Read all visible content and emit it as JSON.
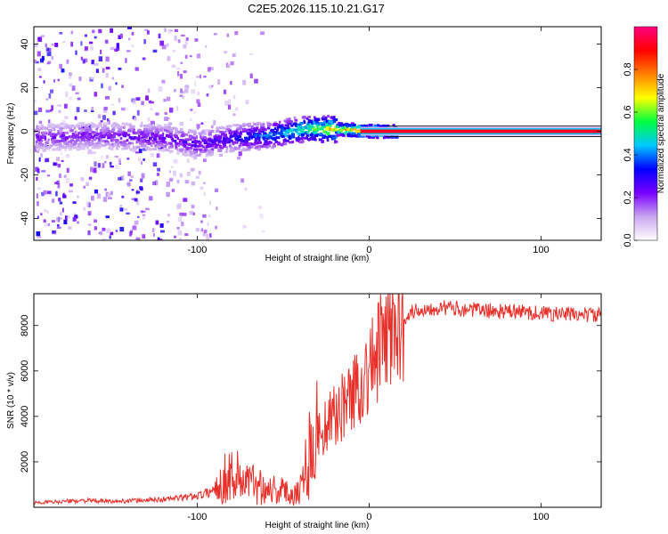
{
  "title": "C2E5.2026.115.10.21.G17",
  "chart_data": [
    {
      "type": "heatmap",
      "panel": "spectrogram",
      "xlabel": "Height of straight line (km)",
      "ylabel": "Frequency (Hz)",
      "xlim": [
        -195,
        135
      ],
      "ylim": [
        -50,
        48
      ],
      "x_ticks": [
        "-100",
        "0",
        "100"
      ],
      "x_tick_values": [
        -100,
        0,
        100
      ],
      "y_ticks": [
        "-40",
        "-20",
        "0",
        "20",
        "40"
      ],
      "y_tick_values": [
        -40,
        -20,
        0,
        20,
        40
      ],
      "colorbar": {
        "label": "Normalized spectral amplitude",
        "range": [
          0.0,
          1.0
        ],
        "ticks": [
          "0.0",
          "0.2",
          "0.4",
          "0.6",
          "0.8"
        ],
        "tick_values": [
          0.0,
          0.2,
          0.4,
          0.6,
          0.8
        ],
        "colors": [
          "#ffffff",
          "#c9a6f0",
          "#7a00ff",
          "#0000ff",
          "#00c8ff",
          "#00ff40",
          "#ffff00",
          "#ff8000",
          "#ff0000",
          "#ff0080"
        ]
      },
      "signal_track": {
        "x": [
          -195,
          -160,
          -120,
          -100,
          -80,
          -60,
          -40,
          -20,
          0,
          20,
          135
        ],
        "freq_hz": [
          -3,
          -2,
          -3,
          -6,
          -3,
          -2,
          1,
          1,
          0,
          0,
          0
        ],
        "amplitude": [
          0.25,
          0.25,
          0.3,
          0.3,
          0.35,
          0.45,
          0.6,
          0.8,
          0.9,
          0.9,
          0.9
        ]
      },
      "noise_region_x": [
        -195,
        -120
      ]
    },
    {
      "type": "line",
      "panel": "snr",
      "xlabel": "Height of straight line (km)",
      "ylabel": "SNR (10 * v/v)",
      "xlim": [
        -195,
        135
      ],
      "ylim": [
        0,
        9400
      ],
      "x_ticks": [
        "-100",
        "0",
        "100"
      ],
      "x_tick_values": [
        -100,
        0,
        100
      ],
      "y_ticks": [
        "2000",
        "4000",
        "6000",
        "8000"
      ],
      "y_tick_values": [
        2000,
        4000,
        6000,
        8000
      ],
      "color": "#e8302a",
      "series": [
        {
          "name": "SNR",
          "x": [
            -195,
            -180,
            -165,
            -150,
            -135,
            -120,
            -105,
            -95,
            -90,
            -85,
            -80,
            -75,
            -70,
            -65,
            -60,
            -55,
            -50,
            -45,
            -40,
            -35,
            -30,
            -25,
            -20,
            -15,
            -10,
            -5,
            0,
            5,
            10,
            15,
            20,
            25,
            30,
            35,
            40,
            50,
            60,
            70,
            80,
            90,
            100,
            110,
            120,
            135
          ],
          "y": [
            200,
            250,
            300,
            250,
            300,
            350,
            450,
            600,
            800,
            1200,
            1500,
            1300,
            1100,
            1000,
            900,
            800,
            700,
            600,
            800,
            2500,
            3200,
            3600,
            4000,
            4500,
            5000,
            5500,
            6000,
            6800,
            7400,
            7900,
            8300,
            8600,
            8700,
            8750,
            8800,
            8750,
            8700,
            8650,
            8600,
            8600,
            8550,
            8500,
            8500,
            8450
          ]
        }
      ]
    }
  ]
}
